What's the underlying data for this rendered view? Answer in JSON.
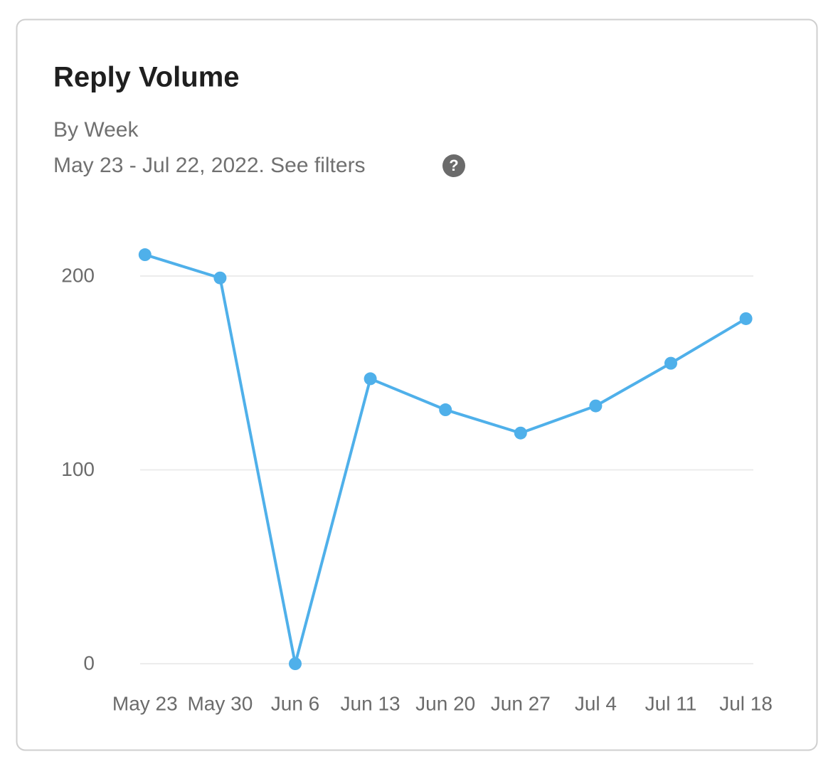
{
  "chart_data": {
    "type": "line",
    "title": "Reply Volume",
    "subtitle": "By Week",
    "date_range": "May 23 - Jul 22, 2022. See filters",
    "help_icon": "?",
    "categories": [
      "May 23",
      "May 30",
      "Jun 6",
      "Jun 13",
      "Jun 20",
      "Jun 27",
      "Jul 4",
      "Jul 11",
      "Jul 18"
    ],
    "series": [
      {
        "name": "Replies",
        "color": "#4fb0ea",
        "values": [
          211,
          199,
          0,
          147,
          131,
          119,
          133,
          155,
          178
        ]
      }
    ],
    "ylim": [
      0,
      220
    ],
    "yticks": [
      0,
      100,
      200
    ],
    "grid": true
  }
}
